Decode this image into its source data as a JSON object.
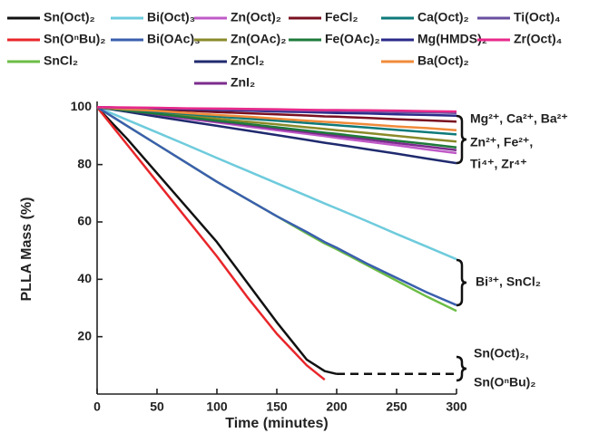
{
  "chart_data": {
    "type": "line",
    "xlabel": "Time (minutes)",
    "ylabel": "PLLA Mass (%)",
    "x": [
      0,
      25,
      50,
      75,
      100,
      125,
      150,
      175,
      190,
      200,
      225,
      250,
      275,
      300
    ],
    "xlim": [
      0,
      300
    ],
    "xticks": [
      0,
      50,
      100,
      150,
      200,
      250,
      300
    ],
    "ylim": [
      0,
      102
    ],
    "yticks": [
      20,
      40,
      60,
      80,
      100
    ],
    "series": [
      {
        "name": "Sn(Oct)₂",
        "color": "#111111",
        "dashed_from": 200,
        "values": [
          100,
          89,
          77,
          65,
          53,
          39,
          25,
          12,
          8,
          7,
          7,
          7,
          7,
          7
        ]
      },
      {
        "name": "Sn(OⁿBu)₂",
        "color": "#e8262a",
        "values": [
          100,
          87,
          74,
          61,
          48,
          34,
          21,
          10,
          5,
          null,
          null,
          null,
          null,
          null
        ]
      },
      {
        "name": "SnCl₂",
        "color": "#6cbd45",
        "values": [
          100,
          93.5,
          87,
          80.5,
          74,
          68,
          62,
          56,
          52.5,
          50.5,
          45,
          39.5,
          34,
          29
        ]
      },
      {
        "name": "Bi(Oct)₃",
        "color": "#6ecbdc",
        "values": [
          100,
          95.6,
          91.2,
          86.8,
          82.3,
          77.9,
          73.5,
          69.1,
          66.4,
          64.7,
          60.3,
          55.8,
          51.4,
          47
        ]
      },
      {
        "name": "Bi(OAc)₃",
        "color": "#3a5fad",
        "values": [
          100,
          93.5,
          87,
          80.5,
          74,
          68,
          62,
          56.5,
          53,
          51,
          45.5,
          40.5,
          35.5,
          31
        ]
      },
      {
        "name": "Zn(Oct)₂",
        "color": "#c05ac8",
        "values": [
          100,
          98.7,
          97.3,
          96,
          94.7,
          93.3,
          92,
          90.7,
          89.9,
          89.3,
          88,
          86.7,
          85.3,
          84
        ]
      },
      {
        "name": "Zn(OAc)₂",
        "color": "#8a8a2a",
        "values": [
          100,
          99,
          98,
          97,
          96,
          95,
          94,
          93,
          92.4,
          92,
          91,
          90,
          89,
          88
        ]
      },
      {
        "name": "ZnCl₂",
        "color": "#1f2a6e",
        "values": [
          100,
          98.4,
          96.7,
          95.1,
          93.5,
          91.9,
          90.3,
          88.6,
          87.6,
          87,
          85.4,
          83.8,
          82.1,
          80.5
        ]
      },
      {
        "name": "ZnI₂",
        "color": "#7b2c8e",
        "values": [
          100,
          98.8,
          97.5,
          96.3,
          95,
          93.8,
          92.5,
          91.3,
          90.5,
          90,
          88.8,
          87.5,
          86.3,
          85
        ]
      },
      {
        "name": "FeCl₂",
        "color": "#7a1020",
        "values": [
          100,
          99.6,
          99.2,
          98.8,
          98.3,
          97.9,
          97.5,
          97.1,
          96.8,
          96.7,
          96.3,
          95.8,
          95.4,
          95
        ]
      },
      {
        "name": "Fe(OAc)₂",
        "color": "#1e7a3a",
        "values": [
          100,
          98.8,
          97.7,
          96.5,
          95.3,
          94.2,
          93,
          91.8,
          91.1,
          90.7,
          89.5,
          88.3,
          87.2,
          86
        ]
      },
      {
        "name": "Ca(Oct)₂",
        "color": "#0e7a7a",
        "values": [
          100,
          99.2,
          98.4,
          97.6,
          96.8,
          96,
          95.3,
          94.5,
          94,
          93.7,
          92.9,
          92.1,
          91.3,
          90.5
        ]
      },
      {
        "name": "Mg(HMDS)₂",
        "color": "#2a2a8a",
        "values": [
          100,
          99.8,
          99.5,
          99.3,
          99,
          98.8,
          98.5,
          98.3,
          98.1,
          98,
          97.8,
          97.5,
          97.3,
          97
        ]
      },
      {
        "name": "Ba(Oct)₂",
        "color": "#f08a3a",
        "values": [
          100,
          99.3,
          98.7,
          98,
          97.3,
          96.7,
          96,
          95.3,
          94.9,
          94.7,
          94,
          93.3,
          92.7,
          92
        ]
      },
      {
        "name": "Ti(Oct)₄",
        "color": "#6a4fa0",
        "values": [
          100,
          99.8,
          99.7,
          99.5,
          99.3,
          99.2,
          99,
          98.8,
          98.7,
          98.7,
          98.5,
          98.3,
          98.2,
          98
        ]
      },
      {
        "name": "Zr(Oct)₄",
        "color": "#e8298a",
        "values": [
          100,
          99.9,
          99.8,
          99.6,
          99.5,
          99.4,
          99.3,
          99.1,
          99,
          99,
          98.9,
          98.8,
          98.6,
          98.5
        ]
      }
    ],
    "annotations": [
      "Mg²⁺, Ca²⁺, Ba²⁺",
      "Zn²⁺, Fe²⁺,",
      "Ti⁴⁺, Zr⁴⁺",
      "Bi³⁺, SnCl₂",
      "Sn(Oct)₂,",
      "Sn(OⁿBu)₂"
    ]
  }
}
